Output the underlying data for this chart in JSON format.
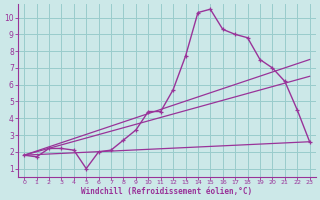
{
  "bg_color": "#cce8e8",
  "grid_color": "#99cccc",
  "line_color": "#993399",
  "spine_color": "#993399",
  "xlim_min": -0.5,
  "xlim_max": 23.5,
  "ylim_min": 0.5,
  "ylim_max": 10.8,
  "xticks": [
    0,
    1,
    2,
    3,
    4,
    5,
    6,
    7,
    8,
    9,
    10,
    11,
    12,
    13,
    14,
    15,
    16,
    17,
    18,
    19,
    20,
    21,
    22,
    23
  ],
  "yticks": [
    1,
    2,
    3,
    4,
    5,
    6,
    7,
    8,
    9,
    10
  ],
  "xlabel": "Windchill (Refroidissement éolien,°C)",
  "main_x": [
    0,
    1,
    2,
    3,
    4,
    5,
    6,
    7,
    8,
    9,
    10,
    11,
    12,
    13,
    14,
    15,
    16,
    17,
    18,
    19,
    20,
    21,
    22,
    23
  ],
  "main_y": [
    1.8,
    1.7,
    2.2,
    2.2,
    2.1,
    1.0,
    2.0,
    2.1,
    2.7,
    3.3,
    4.4,
    4.4,
    5.7,
    7.7,
    10.3,
    10.5,
    9.3,
    9.0,
    8.8,
    7.5,
    7.0,
    6.2,
    4.5,
    2.6
  ],
  "trend1_x": [
    0,
    23
  ],
  "trend1_y": [
    1.8,
    7.5
  ],
  "trend2_x": [
    0,
    23
  ],
  "trend2_y": [
    1.8,
    6.5
  ],
  "trend3_x": [
    0,
    23
  ],
  "trend3_y": [
    1.8,
    2.6
  ]
}
